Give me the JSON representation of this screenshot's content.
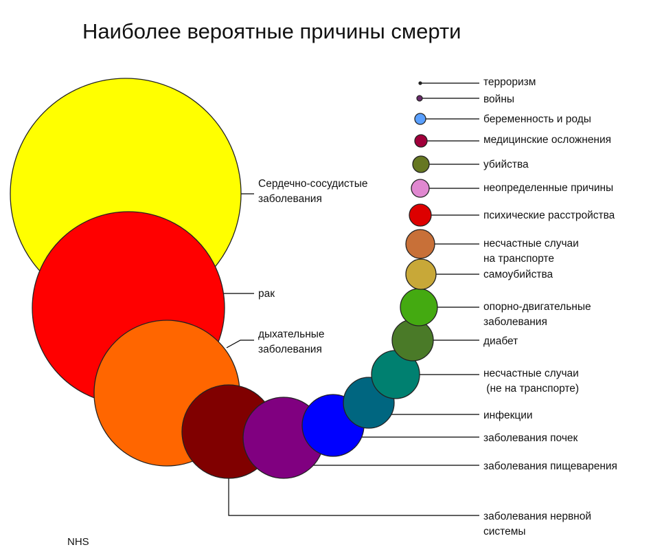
{
  "title": "Наиболее вероятные причины смерти",
  "source": "NHS",
  "causes": [
    {
      "label": [
        "Сердечно-сосудистые",
        "заболевания"
      ],
      "color": "#ffff00"
    },
    {
      "label": [
        "рак"
      ],
      "color": "#ff0000"
    },
    {
      "label": [
        "дыхательные",
        "заболевания"
      ],
      "color": "#ff6600"
    },
    {
      "label": [
        "заболевания нервной",
        "системы"
      ],
      "color": "#800000"
    },
    {
      "label": [
        "заболевания пищеварения"
      ],
      "color": "#800080"
    },
    {
      "label": [
        "заболевания почек"
      ],
      "color": "#0000ff"
    },
    {
      "label": [
        "инфекции"
      ],
      "color": "#006680"
    },
    {
      "label": [
        "несчастные случаи",
        " (не на транспорте)"
      ],
      "color": "#008070"
    },
    {
      "label": [
        "диабет"
      ],
      "color": "#4a7a28"
    },
    {
      "label": [
        "опорно-двигательные",
        "заболевания"
      ],
      "color": "#44aa11"
    },
    {
      "label": [
        "самоубийства"
      ],
      "color": "#c8a838"
    },
    {
      "label": [
        "несчастные случаи",
        "на транспорте"
      ],
      "color": "#c87038"
    },
    {
      "label": [
        "психические расстройства"
      ],
      "color": "#dd0000"
    },
    {
      "label": [
        "неопределенные причины"
      ],
      "color": "#e088d0"
    },
    {
      "label": [
        "убийства"
      ],
      "color": "#667722"
    },
    {
      "label": [
        "медицинские осложнения"
      ],
      "color": "#a0003a"
    },
    {
      "label": [
        "беременность и роды"
      ],
      "color": "#5aa0ff"
    },
    {
      "label": [
        "войны"
      ],
      "color": "#6a2a6a"
    },
    {
      "label": [
        "терроризм"
      ],
      "color": "#222222"
    }
  ]
}
